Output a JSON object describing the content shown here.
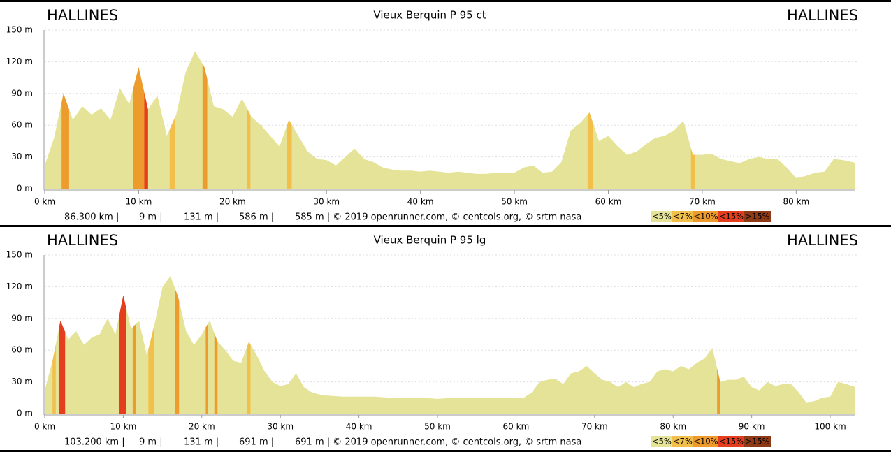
{
  "chart_data": [
    {
      "type": "area",
      "title": "Vieux Berquin P 95 ct",
      "start_label": "HALLINES",
      "end_label": "HALLINES",
      "color": "#e4e397",
      "x": [
        0,
        1,
        2,
        3,
        4,
        5,
        6,
        7,
        8,
        9,
        10,
        11,
        12,
        13,
        14,
        15,
        16,
        17,
        18,
        19,
        20,
        21,
        22,
        23,
        24,
        25,
        26,
        27,
        28,
        29,
        30,
        31,
        32,
        33,
        34,
        35,
        36,
        37,
        38,
        39,
        40,
        41,
        42,
        43,
        44,
        45,
        46,
        47,
        48,
        49,
        50,
        51,
        52,
        53,
        54,
        55,
        56,
        57,
        58,
        59,
        60,
        61,
        62,
        63,
        64,
        65,
        66,
        67,
        68,
        69,
        70,
        71,
        72,
        73,
        74,
        75,
        76,
        77,
        78,
        79,
        80,
        81,
        82,
        83,
        84,
        85,
        86,
        86.3
      ],
      "values": [
        22,
        48,
        90,
        65,
        78,
        70,
        76,
        65,
        95,
        80,
        115,
        75,
        88,
        50,
        70,
        110,
        130,
        115,
        78,
        75,
        68,
        85,
        68,
        60,
        50,
        40,
        65,
        50,
        35,
        28,
        27,
        22,
        30,
        38,
        28,
        25,
        20,
        18,
        17,
        17,
        16,
        17,
        16,
        15,
        16,
        15,
        14,
        14,
        15,
        15,
        15,
        20,
        22,
        15,
        16,
        25,
        55,
        62,
        72,
        45,
        50,
        40,
        32,
        35,
        42,
        48,
        50,
        55,
        64,
        32,
        32,
        33,
        28,
        26,
        24,
        28,
        30,
        28,
        28,
        20,
        10,
        12,
        15,
        16,
        28,
        27,
        25,
        24
      ],
      "sections": [
        {
          "from": 1.8,
          "to": 2.6,
          "grade": 2
        },
        {
          "from": 9.4,
          "to": 10.6,
          "grade": 2
        },
        {
          "from": 10.6,
          "to": 11,
          "grade": 3
        },
        {
          "from": 13.3,
          "to": 13.9,
          "grade": 1
        },
        {
          "from": 16.8,
          "to": 17.3,
          "grade": 2
        },
        {
          "from": 21.5,
          "to": 21.9,
          "grade": 1
        },
        {
          "from": 25.8,
          "to": 26.3,
          "grade": 1
        },
        {
          "from": 57.8,
          "to": 58.4,
          "grade": 1
        },
        {
          "from": 68.8,
          "to": 69.2,
          "grade": 1
        }
      ],
      "xlim": [
        0,
        86.3
      ],
      "ylim": [
        0,
        150
      ],
      "xticks": [
        {
          "value": 0,
          "label": "0 km"
        },
        {
          "value": 10,
          "label": "10 km"
        },
        {
          "value": 20,
          "label": "20 km"
        },
        {
          "value": 30,
          "label": "30 km"
        },
        {
          "value": 40,
          "label": "40 km"
        },
        {
          "value": 50,
          "label": "50 km"
        },
        {
          "value": 60,
          "label": "60 km"
        },
        {
          "value": 70,
          "label": "70 km"
        },
        {
          "value": 80,
          "label": "80 km"
        }
      ],
      "yticks": [
        {
          "value": 0,
          "label": "0 m"
        },
        {
          "value": 30,
          "label": "30 m"
        },
        {
          "value": 60,
          "label": "60 m"
        },
        {
          "value": 90,
          "label": "90 m"
        },
        {
          "value": 120,
          "label": "120 m"
        },
        {
          "value": 150,
          "label": "150 m"
        }
      ],
      "grid": true,
      "footer": [
        "86.300 km |",
        "9 m |",
        "131 m |",
        "586 m |",
        "585 m | © 2019 openrunner.com, © centcols.org, © srtm nasa"
      ],
      "legend": [
        {
          "name": "<5%",
          "color": "#e4e397"
        },
        {
          "name": "<7%",
          "color": "#f2c04a"
        },
        {
          "name": "<10%",
          "color": "#ee9b2e"
        },
        {
          "name": "<15%",
          "color": "#e53e1f"
        },
        {
          "name": ">15%",
          "color": "#8f3a17"
        }
      ]
    },
    {
      "type": "area",
      "title": "Vieux Berquin P 95 lg",
      "start_label": "HALLINES",
      "end_label": "HALLINES",
      "color": "#e4e397",
      "x": [
        0,
        1,
        2,
        3,
        4,
        5,
        6,
        7,
        8,
        9,
        10,
        11,
        12,
        13,
        14,
        15,
        16,
        17,
        18,
        19,
        20,
        21,
        22,
        23,
        24,
        25,
        26,
        27,
        28,
        29,
        30,
        31,
        32,
        33,
        34,
        35,
        36,
        38,
        40,
        42,
        44,
        46,
        48,
        50,
        52,
        54,
        56,
        58,
        60,
        61,
        62,
        63,
        64,
        65,
        66,
        67,
        68,
        69,
        70,
        71,
        72,
        73,
        74,
        75,
        76,
        77,
        78,
        79,
        80,
        81,
        82,
        83,
        84,
        85,
        86,
        87,
        88,
        89,
        90,
        91,
        92,
        93,
        94,
        95,
        96,
        97,
        98,
        99,
        100,
        101,
        102,
        103.2
      ],
      "values": [
        22,
        50,
        88,
        70,
        78,
        65,
        72,
        75,
        90,
        75,
        112,
        80,
        88,
        55,
        85,
        120,
        130,
        110,
        78,
        65,
        75,
        88,
        68,
        60,
        50,
        48,
        68,
        55,
        40,
        30,
        26,
        28,
        38,
        25,
        20,
        18,
        17,
        16,
        16,
        16,
        15,
        15,
        15,
        14,
        15,
        15,
        15,
        15,
        15,
        15,
        20,
        30,
        32,
        33,
        28,
        38,
        40,
        45,
        38,
        32,
        30,
        25,
        30,
        25,
        28,
        30,
        40,
        42,
        40,
        45,
        42,
        48,
        52,
        62,
        30,
        32,
        32,
        35,
        25,
        22,
        30,
        26,
        28,
        28,
        20,
        10,
        12,
        15,
        16,
        30,
        28,
        25
      ],
      "sections": [
        {
          "from": 1,
          "to": 1.4,
          "grade": 1
        },
        {
          "from": 1.8,
          "to": 2.6,
          "grade": 3
        },
        {
          "from": 9.5,
          "to": 10.4,
          "grade": 3
        },
        {
          "from": 11.2,
          "to": 11.6,
          "grade": 2
        },
        {
          "from": 13.2,
          "to": 13.9,
          "grade": 1
        },
        {
          "from": 16.6,
          "to": 17.1,
          "grade": 2
        },
        {
          "from": 20.5,
          "to": 20.8,
          "grade": 2
        },
        {
          "from": 21.6,
          "to": 22,
          "grade": 2
        },
        {
          "from": 25.8,
          "to": 26.2,
          "grade": 1
        },
        {
          "from": 85.6,
          "to": 86,
          "grade": 2
        }
      ],
      "xlim": [
        0,
        103.2
      ],
      "ylim": [
        0,
        150
      ],
      "xticks": [
        {
          "value": 0,
          "label": "0 km"
        },
        {
          "value": 10,
          "label": "10 km"
        },
        {
          "value": 20,
          "label": "20 km"
        },
        {
          "value": 30,
          "label": "30 km"
        },
        {
          "value": 40,
          "label": "40 km"
        },
        {
          "value": 50,
          "label": "50 km"
        },
        {
          "value": 60,
          "label": "60 km"
        },
        {
          "value": 70,
          "label": "70 km"
        },
        {
          "value": 80,
          "label": "80 km"
        },
        {
          "value": 90,
          "label": "90 km"
        },
        {
          "value": 100,
          "label": "100 km"
        }
      ],
      "yticks": [
        {
          "value": 0,
          "label": "0 m"
        },
        {
          "value": 30,
          "label": "30 m"
        },
        {
          "value": 60,
          "label": "60 m"
        },
        {
          "value": 90,
          "label": "90 m"
        },
        {
          "value": 120,
          "label": "120 m"
        },
        {
          "value": 150,
          "label": "150 m"
        }
      ],
      "grid": true,
      "footer": [
        "103.200 km |",
        "9 m |",
        "131 m |",
        "691 m |",
        "691 m | © 2019 openrunner.com, © centcols.org, © srtm nasa"
      ],
      "legend": [
        {
          "name": "<5%",
          "color": "#e4e397"
        },
        {
          "name": "<7%",
          "color": "#f2c04a"
        },
        {
          "name": "<10%",
          "color": "#ee9b2e"
        },
        {
          "name": "<15%",
          "color": "#e53e1f"
        },
        {
          "name": ">15%",
          "color": "#8f3a17"
        }
      ]
    }
  ]
}
